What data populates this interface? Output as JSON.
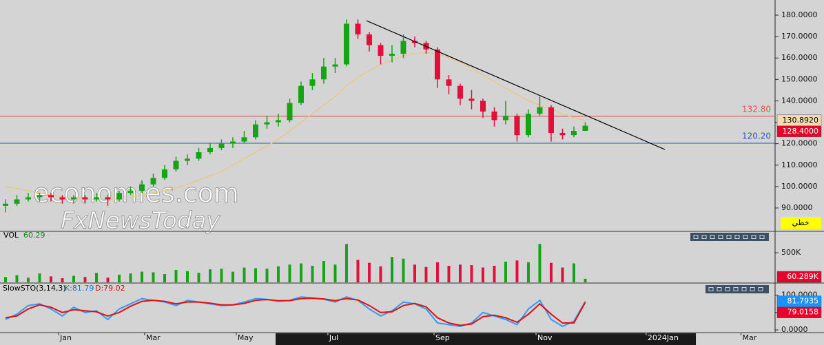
{
  "chart_data": {
    "type": "candlestick",
    "xlim": [
      -0.485,
      67.7
    ],
    "xticks": [
      {
        "value": 4.67,
        "label": "Jan"
      },
      {
        "value": 12.24,
        "label": "Mar"
      },
      {
        "value": 20.3,
        "label": "May"
      },
      {
        "value": 28.36,
        "label": "Jul"
      },
      {
        "value": 37.7,
        "label": "Sep"
      },
      {
        "value": 46.67,
        "label": "Nov"
      },
      {
        "value": 56.36,
        "label": "2024Jan"
      },
      {
        "value": 64.7,
        "label": "Mar"
      }
    ],
    "ylim": [
      79.39,
      187.07
    ],
    "yticks": [
      {
        "value": 90,
        "label": "90.0000"
      },
      {
        "value": 100,
        "label": "100.0000"
      },
      {
        "value": 110,
        "label": "110.0000"
      },
      {
        "value": 120,
        "label": "120.0000"
      },
      {
        "value": 130,
        "label": "130.0000"
      },
      {
        "value": 140,
        "label": "140.0000"
      },
      {
        "value": 150,
        "label": "150.0000"
      },
      {
        "value": 160,
        "label": "160.0000"
      },
      {
        "value": 170,
        "label": "170.0000"
      },
      {
        "value": 180,
        "label": "180.0000"
      }
    ],
    "up_color": "#17a317",
    "down_color": "#e0103a",
    "open": [
      91,
      92,
      94,
      95,
      96,
      95,
      94,
      95,
      94,
      95,
      94,
      97,
      98,
      101,
      104,
      108,
      112,
      113,
      116,
      118,
      120,
      121,
      123,
      129,
      130,
      131,
      139,
      147,
      150,
      156,
      157,
      176,
      171,
      166,
      161,
      162,
      168,
      167,
      164,
      150,
      147,
      141,
      140,
      135,
      131,
      133,
      124,
      134,
      137,
      125,
      124,
      126
    ],
    "high": [
      94,
      96,
      97,
      97,
      97,
      96,
      96,
      96,
      97,
      96,
      98,
      100,
      103,
      106,
      110,
      114,
      115,
      118,
      120,
      122,
      123,
      126,
      131,
      133,
      134,
      141,
      149,
      153,
      160,
      160,
      178,
      178,
      172,
      167,
      166,
      171,
      170,
      168,
      165,
      152,
      148,
      145,
      141,
      137,
      140,
      134,
      136,
      142,
      138,
      127,
      128,
      130
    ],
    "low": [
      88,
      91,
      93,
      93,
      93,
      92,
      92,
      92,
      93,
      91,
      93,
      96,
      97,
      100,
      103,
      107,
      110,
      112,
      115,
      117,
      118,
      120,
      122,
      127,
      128,
      130,
      138,
      145,
      148,
      153,
      156,
      169,
      163,
      157,
      158,
      160,
      165,
      162,
      146,
      143,
      138,
      136,
      132,
      128,
      129,
      121,
      123,
      133,
      121,
      122,
      123,
      126
    ],
    "close": [
      92,
      94,
      95,
      96,
      95,
      94,
      95,
      94,
      95,
      94,
      97,
      98,
      101,
      104,
      108,
      112,
      113,
      116,
      118,
      120,
      121,
      123,
      129,
      130,
      131,
      139,
      147,
      150,
      156,
      157,
      176,
      171,
      166,
      161,
      162,
      168,
      167,
      164,
      150,
      147,
      141,
      140,
      135,
      131,
      133,
      124,
      134,
      137,
      125,
      124,
      126,
      128.4
    ],
    "ma": {
      "color": "#e8c88a",
      "values": [
        100,
        99,
        98,
        97,
        96,
        95,
        94.5,
        94,
        94,
        94,
        94.5,
        95,
        96,
        97,
        98,
        99.5,
        101,
        103,
        105,
        107,
        110,
        113,
        116,
        119,
        122,
        126,
        130,
        134,
        138,
        142,
        147,
        151,
        154,
        157,
        159,
        161,
        162,
        162.5,
        162,
        160,
        158,
        155,
        152,
        149,
        146,
        143,
        140,
        138,
        136,
        134,
        132,
        130.892
      ]
    },
    "levels": [
      {
        "value": 132.8,
        "label": "132.80",
        "color": "#e05050"
      },
      {
        "value": 120.2,
        "label": "120.20",
        "color": "#3050d0"
      }
    ],
    "trendline": {
      "color": "#000000",
      "x": [
        31.76,
        58
      ],
      "y": [
        177.4,
        117.3
      ]
    },
    "last_labels": [
      {
        "value": 130.892,
        "label": "130.8920",
        "color": "#f3dcae",
        "text_color": "#000000"
      },
      {
        "value": 128.4,
        "label": "128.4000",
        "color": "#e8002a",
        "text_color": "#ffffff"
      }
    ],
    "mode_button": "خطي",
    "watermark": [
      "economies.com",
      "FxNewsToday"
    ],
    "volume": {
      "title": "VOL",
      "current": "60.29",
      "ylim": [
        0,
        850000
      ],
      "yticks": [
        {
          "value": 500000,
          "label": "500K"
        }
      ],
      "values": [
        90000,
        120000,
        80000,
        150000,
        100000,
        70000,
        110000,
        90000,
        160000,
        80000,
        130000,
        150000,
        180000,
        170000,
        140000,
        210000,
        190000,
        160000,
        220000,
        230000,
        180000,
        250000,
        240000,
        230000,
        270000,
        300000,
        320000,
        280000,
        360000,
        300000,
        650000,
        380000,
        330000,
        270000,
        430000,
        400000,
        300000,
        260000,
        340000,
        280000,
        300000,
        290000,
        250000,
        280000,
        350000,
        370000,
        340000,
        650000,
        330000,
        250000,
        320000,
        60289
      ],
      "last_labels": [
        {
          "value": 60289,
          "label": "60.289K",
          "color": "#e8002a",
          "text_color": "#ffffff"
        }
      ]
    },
    "stoch": {
      "title": "SlowSTO(3,14,3)",
      "k_label": "K:81.79",
      "d_label": "D:79.02",
      "ylim": [
        -3.8,
        132.7
      ],
      "yticks": [
        {
          "value": 0,
          "label": "0.0000"
        },
        {
          "value": 50,
          "label": "50.0000"
        },
        {
          "value": 100,
          "label": "100.0000"
        }
      ],
      "k": {
        "color": "#3399ff",
        "values": [
          30,
          45,
          70,
          75,
          60,
          40,
          65,
          50,
          55,
          30,
          60,
          75,
          90,
          85,
          80,
          70,
          85,
          80,
          75,
          70,
          72,
          80,
          90,
          88,
          82,
          85,
          95,
          92,
          88,
          80,
          95,
          85,
          60,
          40,
          55,
          80,
          75,
          60,
          20,
          15,
          10,
          20,
          50,
          40,
          30,
          15,
          60,
          85,
          30,
          10,
          25,
          81.7935
        ]
      },
      "d": {
        "color": "#e01010",
        "values": [
          35,
          40,
          60,
          72,
          65,
          50,
          58,
          55,
          52,
          40,
          50,
          68,
          82,
          85,
          82,
          75,
          80,
          80,
          77,
          72,
          72,
          76,
          85,
          87,
          84,
          84,
          90,
          91,
          89,
          84,
          90,
          86,
          70,
          50,
          52,
          70,
          76,
          66,
          35,
          20,
          13,
          17,
          38,
          42,
          35,
          22,
          45,
          75,
          45,
          20,
          20,
          79.0158
        ]
      },
      "last_labels": [
        {
          "value": 81.7935,
          "label": "81.7935",
          "color": "#1e90ff",
          "text_color": "#ffffff"
        },
        {
          "value": 79.0158,
          "label": "79.0158",
          "color": "#e8002a",
          "text_color": "#ffffff"
        }
      ]
    }
  }
}
